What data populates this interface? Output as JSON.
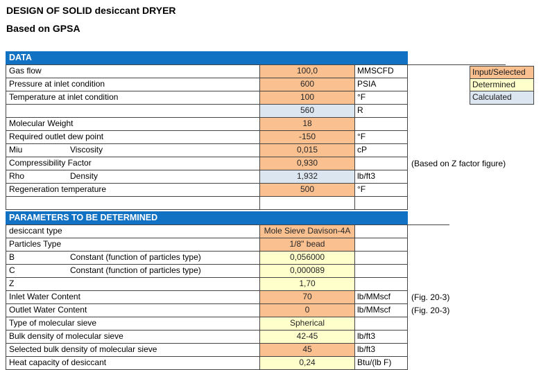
{
  "title": "DESIGN OF SOLID desiccant DRYER",
  "subtitle": "Based on GPSA",
  "colors": {
    "input": "#FAC090",
    "determined": "#FFFFCC",
    "calculated": "#DCE6F1",
    "header_blue": "#1172C4",
    "none": "#FFFFFF"
  },
  "legend": {
    "items": [
      {
        "label": "Input/Selected",
        "fill": "input"
      },
      {
        "label": "Determined",
        "fill": "determined"
      },
      {
        "label": "Calculated",
        "fill": "calculated"
      }
    ]
  },
  "sections": [
    {
      "header": "DATA",
      "rows": [
        {
          "label": "Gas flow",
          "value": "100,0",
          "fill": "input",
          "unit": "MMSCFD"
        },
        {
          "label": "Pressure at inlet condition",
          "value": "600",
          "fill": "input",
          "unit": "PSIA"
        },
        {
          "label": "Temperature at inlet condition",
          "value": "100",
          "fill": "input",
          "unit": "°F"
        },
        {
          "label": "",
          "value": "560",
          "fill": "calculated",
          "unit": "R"
        },
        {
          "label": "Molecular Weight",
          "value": "18",
          "fill": "input",
          "unit": ""
        },
        {
          "label": "Required outlet dew point",
          "value": "-150",
          "fill": "input",
          "unit": "°F"
        },
        {
          "label": "Miu",
          "label2": "Viscosity",
          "value": "0,015",
          "fill": "input",
          "unit": "cP"
        },
        {
          "label": "Compressibility Factor",
          "value": "0,930",
          "fill": "input",
          "unit": "",
          "note": "(Based on Z factor figure)"
        },
        {
          "label": "Rho",
          "label2": "Density",
          "value": "1,932",
          "fill": "calculated",
          "unit": "lb/ft3"
        },
        {
          "label": "Regeneration temperature",
          "value": "500",
          "fill": "input",
          "unit": "°F"
        },
        {
          "label": "",
          "value": "",
          "fill": "none",
          "unit": ""
        }
      ]
    },
    {
      "header": "PARAMETERS TO BE DETERMINED",
      "rows": [
        {
          "label": "desiccant type",
          "value": "Mole Sieve Davison-4A",
          "fill": "input",
          "unit": ""
        },
        {
          "label": "Particles Type",
          "value": "1/8\" bead",
          "fill": "input",
          "unit": ""
        },
        {
          "label": "B",
          "label2": "Constant (function of particles type)",
          "value": "0,056000",
          "fill": "determined",
          "unit": ""
        },
        {
          "label": "C",
          "label2": "Constant (function of particles type)",
          "value": "0,000089",
          "fill": "determined",
          "unit": ""
        },
        {
          "label": "Z",
          "value": "1,70",
          "fill": "determined",
          "unit": ""
        },
        {
          "label": "Inlet Water Content",
          "value": "70",
          "fill": "input",
          "unit": "lb/MMscf",
          "note": "(Fig. 20-3)"
        },
        {
          "label": "Outlet Water Content",
          "value": "0",
          "fill": "input",
          "unit": "lb/MMscf",
          "note": "(Fig. 20-3)"
        },
        {
          "label": "Type of molecular sieve",
          "value": "Spherical",
          "fill": "determined",
          "unit": ""
        },
        {
          "label": "Bulk density of molecular sieve",
          "value": "42-45",
          "fill": "determined",
          "unit": "lb/ft3"
        },
        {
          "label": "Selected bulk density of molecular sieve",
          "value": "45",
          "fill": "input",
          "unit": "lb/ft3"
        },
        {
          "label": "Heat capacity of desiccant",
          "value": "0,24",
          "fill": "determined",
          "unit": "Btu/(lb F)"
        }
      ]
    }
  ]
}
